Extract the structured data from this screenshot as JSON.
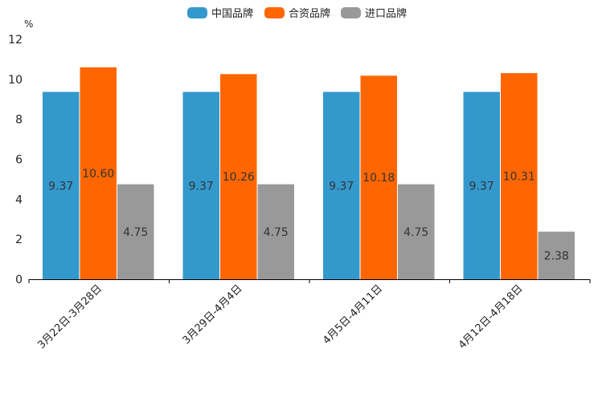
{
  "chart_data": {
    "type": "bar",
    "title": "",
    "xlabel": "",
    "ylabel": "",
    "unit": "%",
    "ylim": [
      0,
      12
    ],
    "yticks": [
      0,
      2,
      4,
      6,
      8,
      10,
      12
    ],
    "categories": [
      "3月22日-3月28日",
      "3月29日-4月4日",
      "4月5日-4月11日",
      "4月12日-4月18日"
    ],
    "series": [
      {
        "name": "中国品牌",
        "color": "#3399cc",
        "values": [
          9.37,
          9.37,
          9.37,
          9.37
        ],
        "labels": [
          "9.37",
          "9.37",
          "9.37",
          "9.37"
        ]
      },
      {
        "name": "合资品牌",
        "color": "#ff6600",
        "values": [
          10.6,
          10.26,
          10.18,
          10.31
        ],
        "labels": [
          "10.60",
          "10.26",
          "10.18",
          "10.31"
        ]
      },
      {
        "name": "进口品牌",
        "color": "#999999",
        "values": [
          4.75,
          4.75,
          4.75,
          2.38
        ],
        "labels": [
          "4.75",
          "4.75",
          "4.75",
          "2.38"
        ]
      }
    ],
    "legend_position": "top-center",
    "grid": false
  }
}
